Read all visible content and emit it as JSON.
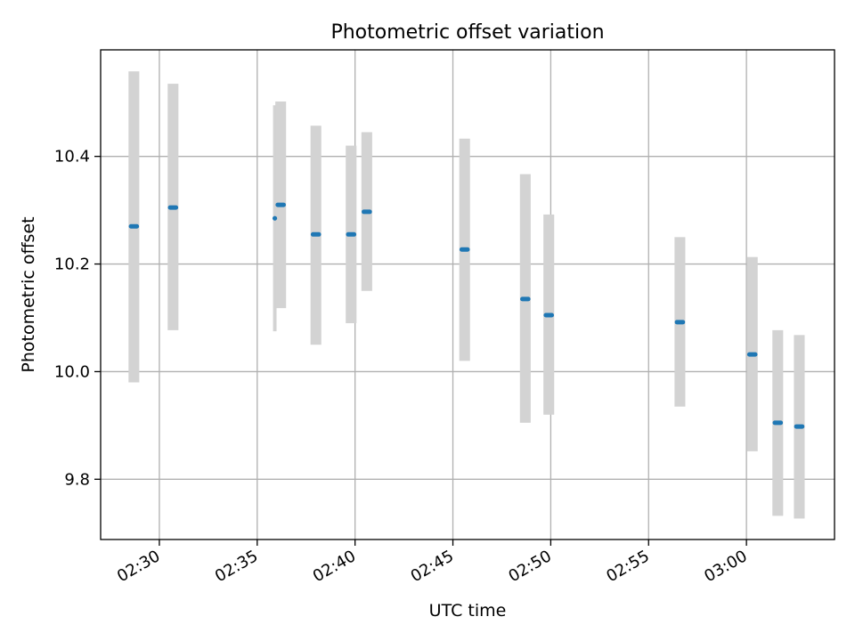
{
  "chart_data": {
    "type": "scatter",
    "title": "Photometric offset variation",
    "xlabel": "UTC time",
    "ylabel": "Photometric offset",
    "xlim": [
      "02:27",
      "03:04.5"
    ],
    "ylim": [
      9.688,
      10.598
    ],
    "grid": true,
    "xticks": [
      "02:30",
      "02:35",
      "02:40",
      "02:45",
      "02:50",
      "02:55",
      "03:00"
    ],
    "yticks": [
      9.8,
      10.0,
      10.2,
      10.4
    ],
    "ytick_labels": [
      "9.8",
      "10.0",
      "10.2",
      "10.4"
    ],
    "colors": {
      "points": "#1f77b4",
      "error_bars": "#d3d3d3",
      "grid": "#b0b0b0"
    },
    "x": [
      "02:28.7",
      "02:30.7",
      "02:35.9",
      "02:36.2",
      "02:38.0",
      "02:39.8",
      "02:40.6",
      "02:45.6",
      "02:48.7",
      "02:49.9",
      "02:56.6",
      "03:00.3",
      "03:01.6",
      "03:02.7"
    ],
    "y": [
      10.27,
      10.305,
      10.285,
      10.31,
      10.255,
      10.255,
      10.297,
      10.227,
      10.135,
      10.105,
      10.092,
      10.032,
      9.905,
      9.898
    ],
    "y_low": [
      9.98,
      10.077,
      10.075,
      10.118,
      10.05,
      10.09,
      10.15,
      10.02,
      9.905,
      9.92,
      9.935,
      9.852,
      9.732,
      9.727
    ],
    "y_high": [
      10.558,
      10.535,
      10.495,
      10.502,
      10.457,
      10.42,
      10.445,
      10.433,
      10.367,
      10.292,
      10.25,
      10.213,
      10.077,
      10.068
    ],
    "bar_width_min": [
      0.55,
      0.55,
      0.18,
      0.55,
      0.55,
      0.55,
      0.55,
      0.55,
      0.55,
      0.55,
      0.55,
      0.55,
      0.55,
      0.55
    ],
    "marker_span_min": [
      0.3,
      0.3,
      0.0,
      0.3,
      0.3,
      0.3,
      0.3,
      0.3,
      0.3,
      0.3,
      0.3,
      0.3,
      0.3,
      0.3
    ]
  }
}
